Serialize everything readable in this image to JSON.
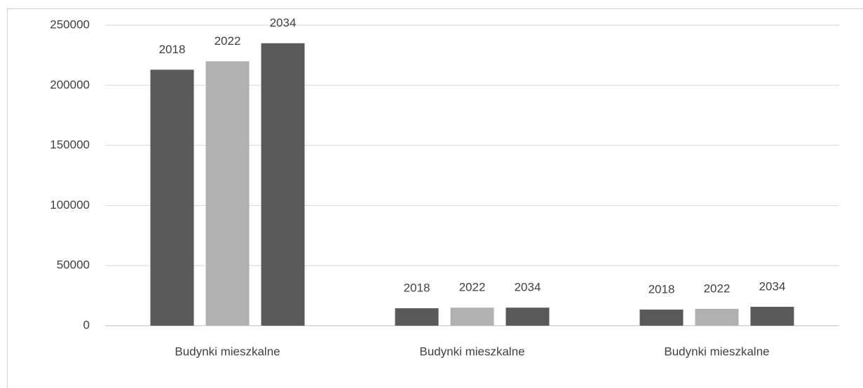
{
  "chart_data": {
    "type": "bar",
    "categories": [
      "Budynki mieszkalne",
      "Budynki mieszkalne",
      "Budynki mieszkalne"
    ],
    "series": [
      {
        "name": "2018",
        "color": "#595959",
        "values": [
          213000,
          14500,
          13400
        ]
      },
      {
        "name": "2022",
        "color": "#b0b0b0",
        "values": [
          220000,
          15000,
          14000
        ]
      },
      {
        "name": "2034",
        "color": "#595959",
        "values": [
          235000,
          15000,
          15700
        ]
      }
    ],
    "ylim": [
      0,
      250000
    ],
    "yticks": [
      0,
      50000,
      100000,
      150000,
      200000,
      250000
    ],
    "grid": true
  }
}
